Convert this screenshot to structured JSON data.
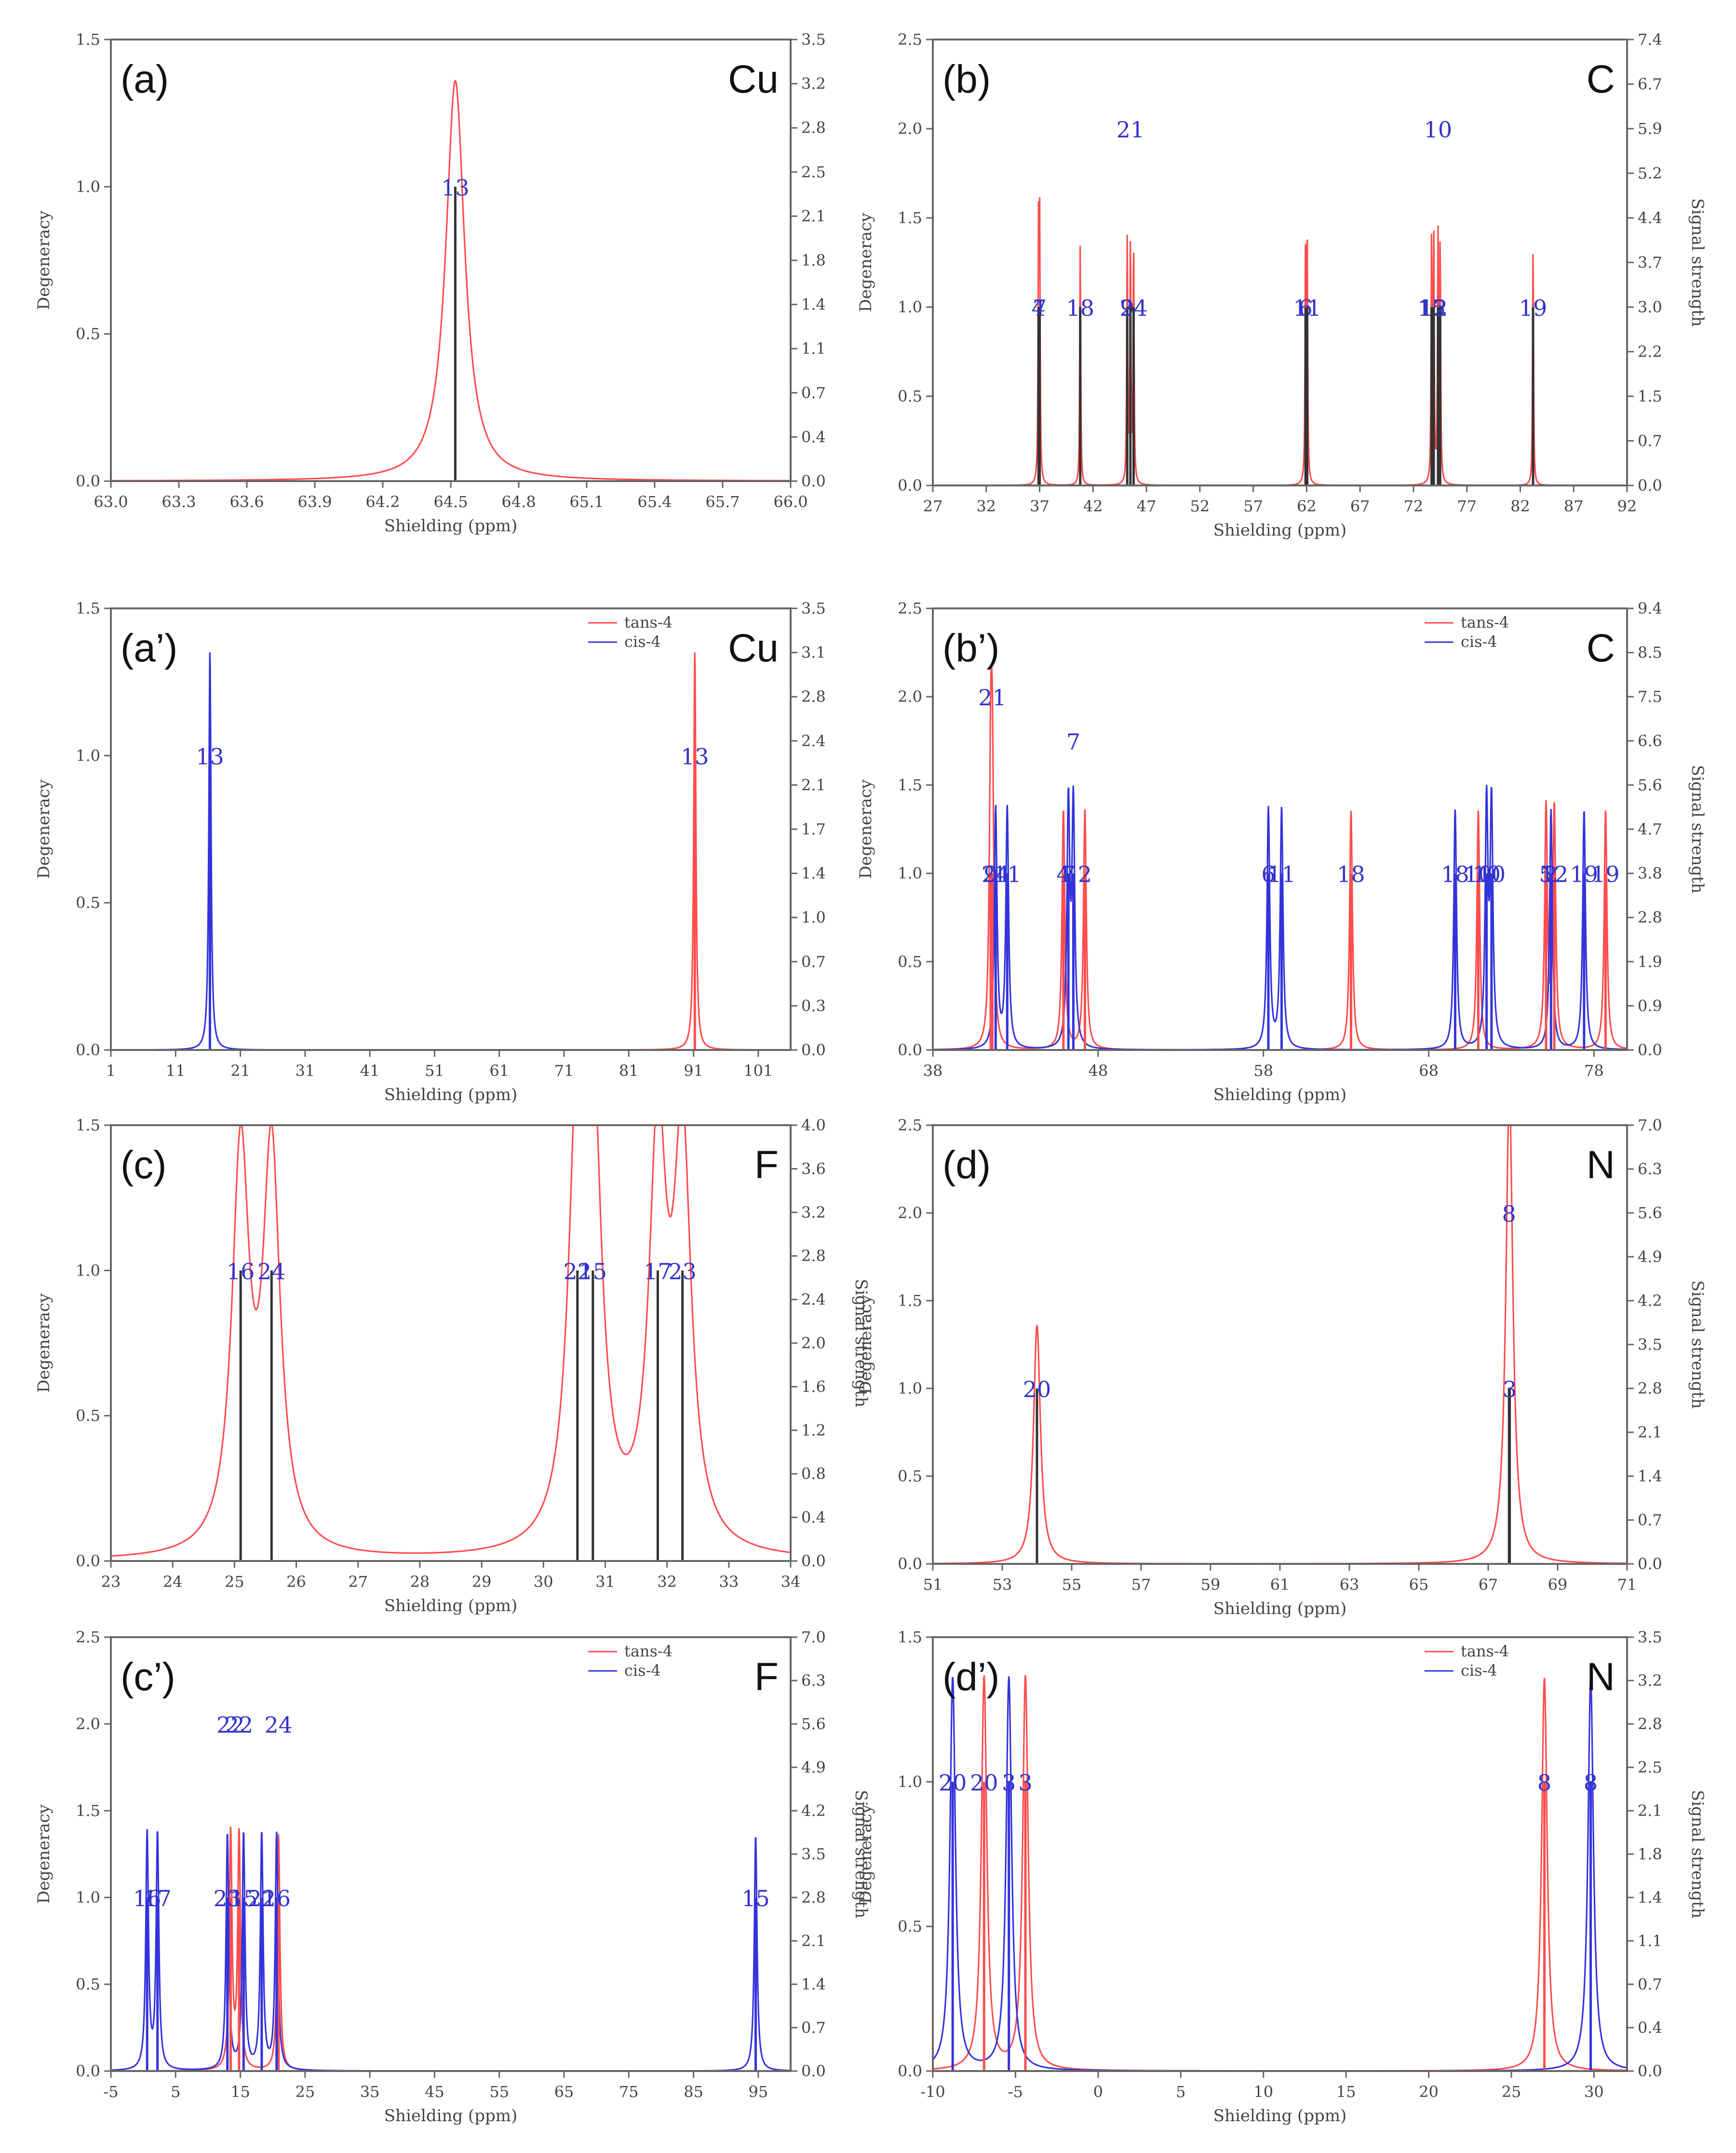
{
  "colors": {
    "trans": "#ff4d4d",
    "cis": "#3333dd",
    "stick": "#333333",
    "axis": "#666666",
    "text": "#444444",
    "atomLabel": "#3333cc"
  },
  "common": {
    "xlabel": "Shielding (ppm)",
    "ylabel": "Degeneracy",
    "ylabel2": "Signal strength"
  },
  "chart_data": [
    {
      "id": "a",
      "type": "line",
      "title": "(a)",
      "element": "Cu",
      "xlabel": "Shielding (ppm)",
      "ylabel": "Degeneracy",
      "ylabel2": "",
      "xlim": [
        63.0,
        66.0
      ],
      "xticks": [
        63.0,
        63.3,
        63.6,
        63.9,
        64.2,
        64.5,
        64.8,
        65.1,
        65.4,
        65.7,
        66.0
      ],
      "xdec": 1,
      "ylim": [
        0,
        1.5
      ],
      "yticks": [
        0.0,
        0.5,
        1.0,
        1.5
      ],
      "y2ticks": [
        "0.0",
        "0.4",
        "0.7",
        "1.1",
        "1.4",
        "1.8",
        "2.1",
        "2.5",
        "2.8",
        "3.2",
        "3.5"
      ],
      "legend": [],
      "series": [
        {
          "name": "",
          "color": "#ff4d4d",
          "width": 0.05,
          "scale": 1,
          "peaks": [
            {
              "x": 64.52,
              "deg": 1,
              "label": "13",
              "lh": 1.0
            }
          ]
        }
      ]
    },
    {
      "id": "b",
      "type": "line",
      "title": "(b)",
      "element": "C",
      "xlabel": "Shielding (ppm)",
      "ylabel": "Degeneracy",
      "ylabel2": "Signal strength",
      "xlim": [
        27,
        92
      ],
      "xticks": [
        27,
        32,
        37,
        42,
        47,
        52,
        57,
        62,
        67,
        72,
        77,
        82,
        87,
        92
      ],
      "xdec": 0,
      "ylim": [
        0,
        2.5
      ],
      "yticks": [
        0.0,
        0.5,
        1.0,
        1.5,
        2.0,
        2.5
      ],
      "y2ticks": [
        "0.0",
        "0.7",
        "1.5",
        "2.2",
        "3.0",
        "3.7",
        "4.4",
        "5.2",
        "5.9",
        "6.7",
        "7.4"
      ],
      "legend": [],
      "series": [
        {
          "name": "",
          "color": "#ff4d4d",
          "width": 0.05,
          "scale": 1,
          "peaks": [
            {
              "x": 36.9,
              "deg": 1,
              "label": "4",
              "lh": 1.0
            },
            {
              "x": 37.0,
              "deg": 1,
              "label": "7",
              "lh": 1.0
            },
            {
              "x": 40.8,
              "deg": 1,
              "label": "18",
              "lh": 1.0
            },
            {
              "x": 45.2,
              "deg": 1,
              "label": "9",
              "lh": 1.0
            },
            {
              "x": 45.5,
              "deg": 1,
              "label": "21",
              "lh": 2.0
            },
            {
              "x": 45.8,
              "deg": 1,
              "label": "24",
              "lh": 1.0
            },
            {
              "x": 61.9,
              "deg": 1,
              "label": "6",
              "lh": 1.0
            },
            {
              "x": 62.05,
              "deg": 1,
              "label": "11",
              "lh": 1.0
            },
            {
              "x": 73.7,
              "deg": 1,
              "label": "15",
              "lh": 1.0
            },
            {
              "x": 73.9,
              "deg": 1,
              "label": "12",
              "lh": 1.0
            },
            {
              "x": 74.3,
              "deg": 1,
              "label": "10",
              "lh": 2.0
            },
            {
              "x": 74.5,
              "deg": 1,
              "label": "2",
              "lh": 1.0
            },
            {
              "x": 83.2,
              "deg": 1,
              "label": "19",
              "lh": 1.0
            }
          ]
        }
      ]
    },
    {
      "id": "a2",
      "type": "line",
      "title": "(a’)",
      "element": "Cu",
      "xlabel": "Shielding (ppm)",
      "ylabel": "Degeneracy",
      "ylabel2": "",
      "xlim": [
        1,
        106
      ],
      "xticks": [
        1,
        11,
        21,
        31,
        41,
        51,
        61,
        71,
        81,
        91,
        101
      ],
      "xdec": 0,
      "ylim": [
        0,
        1.5
      ],
      "yticks": [
        0.0,
        0.5,
        1.0,
        1.5
      ],
      "y2ticks": [
        "0.0",
        "0.3",
        "0.7",
        "1.0",
        "1.4",
        "1.7",
        "2.1",
        "2.4",
        "2.8",
        "3.1",
        "3.5"
      ],
      "legend": [
        {
          "name": "tans-4",
          "color": "#ff4d4d"
        },
        {
          "name": "cis-4",
          "color": "#3333dd"
        }
      ],
      "series": [
        {
          "name": "tans-4",
          "color": "#ff4d4d",
          "width": 0.2,
          "scale": 1,
          "peaks": [
            {
              "x": 91.2,
              "deg": 1,
              "label": "13",
              "lh": 1.0
            }
          ]
        },
        {
          "name": "cis-4",
          "color": "#3333dd",
          "width": 0.2,
          "scale": 1,
          "peaks": [
            {
              "x": 16.3,
              "deg": 1,
              "label": "13",
              "lh": 1.0
            }
          ]
        }
      ]
    },
    {
      "id": "b2",
      "type": "line",
      "title": "(b’)",
      "element": "C",
      "xlabel": "Shielding (ppm)",
      "ylabel": "Degeneracy",
      "ylabel2": "Signal strength",
      "xlim": [
        38,
        80
      ],
      "xticks": [
        38,
        48,
        58,
        68,
        78
      ],
      "xdec": 0,
      "ylim": [
        0,
        2.5
      ],
      "yticks": [
        0.0,
        0.5,
        1.0,
        1.5,
        2.0,
        2.5
      ],
      "y2ticks": [
        "0.0",
        "0.9",
        "1.9",
        "2.8",
        "3.8",
        "4.7",
        "5.6",
        "6.6",
        "7.5",
        "8.5",
        "9.4"
      ],
      "legend": [
        {
          "name": "tans-4",
          "color": "#ff4d4d"
        },
        {
          "name": "cis-4",
          "color": "#3333dd"
        }
      ],
      "series": [
        {
          "name": "tans-4",
          "color": "#ff4d4d",
          "width": 0.1,
          "scale": 1,
          "peaks": [
            {
              "x": 41.5,
              "deg": 1,
              "label": "9",
              "lh": 1.0
            },
            {
              "x": 41.6,
              "deg": 1,
              "label": "21",
              "lh": 2.0
            },
            {
              "x": 45.9,
              "deg": 1,
              "label": "4",
              "lh": 1.0
            },
            {
              "x": 47.2,
              "deg": 1,
              "label": "2",
              "lh": 1.0
            },
            {
              "x": 63.3,
              "deg": 1,
              "label": "18",
              "lh": 1.0
            },
            {
              "x": 71.0,
              "deg": 1,
              "label": "10",
              "lh": 1.0
            },
            {
              "x": 75.1,
              "deg": 1,
              "label": "5",
              "lh": 1.0
            },
            {
              "x": 75.6,
              "deg": 1,
              "label": "12",
              "lh": 1.0
            },
            {
              "x": 78.7,
              "deg": 1,
              "label": "19",
              "lh": 1.0
            }
          ]
        },
        {
          "name": "cis-4",
          "color": "#3333dd",
          "width": 0.1,
          "scale": 1,
          "peaks": [
            {
              "x": 41.8,
              "deg": 1,
              "label": "24",
              "lh": 1.0
            },
            {
              "x": 42.5,
              "deg": 1,
              "label": "11",
              "lh": 1.0
            },
            {
              "x": 46.2,
              "deg": 1,
              "label": "7",
              "lh": 1.0
            },
            {
              "x": 46.5,
              "deg": 1,
              "label": "7",
              "lh": 1.75
            },
            {
              "x": 58.3,
              "deg": 1,
              "label": "6",
              "lh": 1.0
            },
            {
              "x": 59.1,
              "deg": 1,
              "label": "11",
              "lh": 1.0
            },
            {
              "x": 69.6,
              "deg": 1,
              "label": "18",
              "lh": 1.0
            },
            {
              "x": 71.5,
              "deg": 1,
              "label": "10",
              "lh": 1.0
            },
            {
              "x": 71.8,
              "deg": 1,
              "label": "10",
              "lh": 1.0
            },
            {
              "x": 75.4,
              "deg": 1,
              "label": "2",
              "lh": 1.0
            },
            {
              "x": 77.4,
              "deg": 1,
              "label": "19",
              "lh": 1.0
            }
          ]
        }
      ]
    },
    {
      "id": "c",
      "type": "line",
      "title": "(c)",
      "element": "F",
      "xlabel": "Shielding (ppm)",
      "ylabel": "Degeneracy",
      "ylabel2": "Signal strength",
      "xlim": [
        23,
        34
      ],
      "xticks": [
        23,
        24,
        25,
        26,
        27,
        28,
        29,
        30,
        31,
        32,
        33,
        34
      ],
      "xdec": 0,
      "ylim": [
        0,
        1.5
      ],
      "yticks": [
        0.0,
        0.5,
        1.0,
        1.5
      ],
      "y2ticks": [
        "0.0",
        "0.4",
        "0.8",
        "1.2",
        "1.6",
        "2.0",
        "2.4",
        "2.8",
        "3.2",
        "3.6",
        "4.0"
      ],
      "legend": [],
      "series": [
        {
          "name": "",
          "color": "#ff4d4d",
          "width": 0.17,
          "scale": 1,
          "peaks": [
            {
              "x": 25.1,
              "deg": 1,
              "label": "16",
              "lh": 1.0
            },
            {
              "x": 25.6,
              "deg": 1,
              "label": "24",
              "lh": 1.0
            },
            {
              "x": 30.55,
              "deg": 1,
              "label": "22",
              "lh": 1.0
            },
            {
              "x": 30.8,
              "deg": 1,
              "label": "15",
              "lh": 1.0
            },
            {
              "x": 31.85,
              "deg": 1,
              "label": "17",
              "lh": 1.0
            },
            {
              "x": 32.25,
              "deg": 1,
              "label": "23",
              "lh": 1.0
            }
          ]
        }
      ]
    },
    {
      "id": "d",
      "type": "line",
      "title": "(d)",
      "element": "N",
      "xlabel": "Shielding (ppm)",
      "ylabel": "Degeneracy",
      "ylabel2": "Signal strength",
      "xlim": [
        51,
        71
      ],
      "xticks": [
        51,
        53,
        55,
        57,
        59,
        61,
        63,
        65,
        67,
        69,
        71
      ],
      "xdec": 0,
      "ylim": [
        0,
        2.5
      ],
      "yticks": [
        0.0,
        0.5,
        1.0,
        1.5,
        2.0,
        2.5
      ],
      "y2ticks": [
        "0.0",
        "0.7",
        "1.4",
        "2.1",
        "2.8",
        "3.5",
        "4.2",
        "4.9",
        "5.6",
        "6.3",
        "7.0"
      ],
      "legend": [],
      "series": [
        {
          "name": "",
          "color": "#ff4d4d",
          "width": 0.12,
          "scale": 1,
          "peaks": [
            {
              "x": 54.0,
              "deg": 1,
              "label": "20",
              "lh": 1.0
            },
            {
              "x": 67.6,
              "deg": 1,
              "label": "8",
              "lh": 2.0
            },
            {
              "x": 67.62,
              "deg": 1,
              "label": "3",
              "lh": 1.0
            }
          ]
        }
      ]
    },
    {
      "id": "c2",
      "type": "line",
      "title": "(c’)",
      "element": "F",
      "xlabel": "Shielding (ppm)",
      "ylabel": "Degeneracy",
      "ylabel2": "Signal strength",
      "xlim": [
        -5,
        100
      ],
      "xticks": [
        -5,
        5,
        15,
        25,
        35,
        45,
        55,
        65,
        75,
        85,
        95
      ],
      "xdec": 0,
      "ylim": [
        0,
        2.5
      ],
      "yticks": [
        0.0,
        0.5,
        1.0,
        1.5,
        2.0,
        2.5
      ],
      "y2ticks": [
        "0.0",
        "0.7",
        "1.4",
        "2.1",
        "2.8",
        "3.5",
        "4.2",
        "4.9",
        "5.6",
        "6.3",
        "7.0"
      ],
      "legend": [
        {
          "name": "tans-4",
          "color": "#ff4d4d"
        },
        {
          "name": "cis-4",
          "color": "#3333dd"
        }
      ],
      "series": [
        {
          "name": "tans-4",
          "color": "#ff4d4d",
          "width": 0.25,
          "scale": 1,
          "peaks": [
            {
              "x": 13.5,
              "deg": 1,
              "label": "22",
              "lh": 2.0
            },
            {
              "x": 14.8,
              "deg": 1,
              "label": "22",
              "lh": 2.0
            },
            {
              "x": 20.9,
              "deg": 1,
              "label": "24",
              "lh": 2.0
            }
          ]
        },
        {
          "name": "cis-4",
          "color": "#3333dd",
          "width": 0.25,
          "scale": 1,
          "peaks": [
            {
              "x": 0.6,
              "deg": 1,
              "label": "16",
              "lh": 1.0
            },
            {
              "x": 2.2,
              "deg": 1,
              "label": "17",
              "lh": 1.0
            },
            {
              "x": 13.0,
              "deg": 1,
              "label": "23",
              "lh": 1.0
            },
            {
              "x": 15.5,
              "deg": 1,
              "label": "15",
              "lh": 1.0
            },
            {
              "x": 18.3,
              "deg": 1,
              "label": "22",
              "lh": 1.0
            },
            {
              "x": 20.6,
              "deg": 1,
              "label": "16",
              "lh": 1.0
            },
            {
              "x": 94.6,
              "deg": 1,
              "label": "15",
              "lh": 1.0
            }
          ]
        }
      ]
    },
    {
      "id": "d2",
      "type": "line",
      "title": "(d’)",
      "element": "N",
      "xlabel": "Shielding (ppm)",
      "ylabel": "Degeneracy",
      "ylabel2": "Signal strength",
      "xlim": [
        -10,
        32
      ],
      "xticks": [
        -10,
        -5,
        0,
        5,
        10,
        15,
        20,
        25,
        30
      ],
      "xdec": 0,
      "ylim": [
        0,
        1.5
      ],
      "yticks": [
        0.0,
        0.5,
        1.0,
        1.5
      ],
      "y2ticks": [
        "0.0",
        "0.4",
        "0.7",
        "1.1",
        "1.4",
        "1.8",
        "2.1",
        "2.5",
        "2.8",
        "3.2",
        "3.5"
      ],
      "legend": [
        {
          "name": "tans-4",
          "color": "#ff4d4d"
        },
        {
          "name": "cis-4",
          "color": "#3333dd"
        }
      ],
      "series": [
        {
          "name": "tans-4",
          "color": "#ff4d4d",
          "width": 0.2,
          "scale": 1,
          "peaks": [
            {
              "x": -6.9,
              "deg": 1,
              "label": "20",
              "lh": 1.0
            },
            {
              "x": -4.4,
              "deg": 1,
              "label": "3",
              "lh": 1.0
            },
            {
              "x": 27.0,
              "deg": 1,
              "label": "8",
              "lh": 1.0
            }
          ]
        },
        {
          "name": "cis-4",
          "color": "#3333dd",
          "width": 0.2,
          "scale": 1,
          "peaks": [
            {
              "x": -8.8,
              "deg": 1,
              "label": "20",
              "lh": 1.0
            },
            {
              "x": -5.4,
              "deg": 1,
              "label": "3",
              "lh": 1.0
            },
            {
              "x": 29.8,
              "deg": 1,
              "label": "8",
              "lh": 1.0
            }
          ]
        }
      ]
    }
  ]
}
